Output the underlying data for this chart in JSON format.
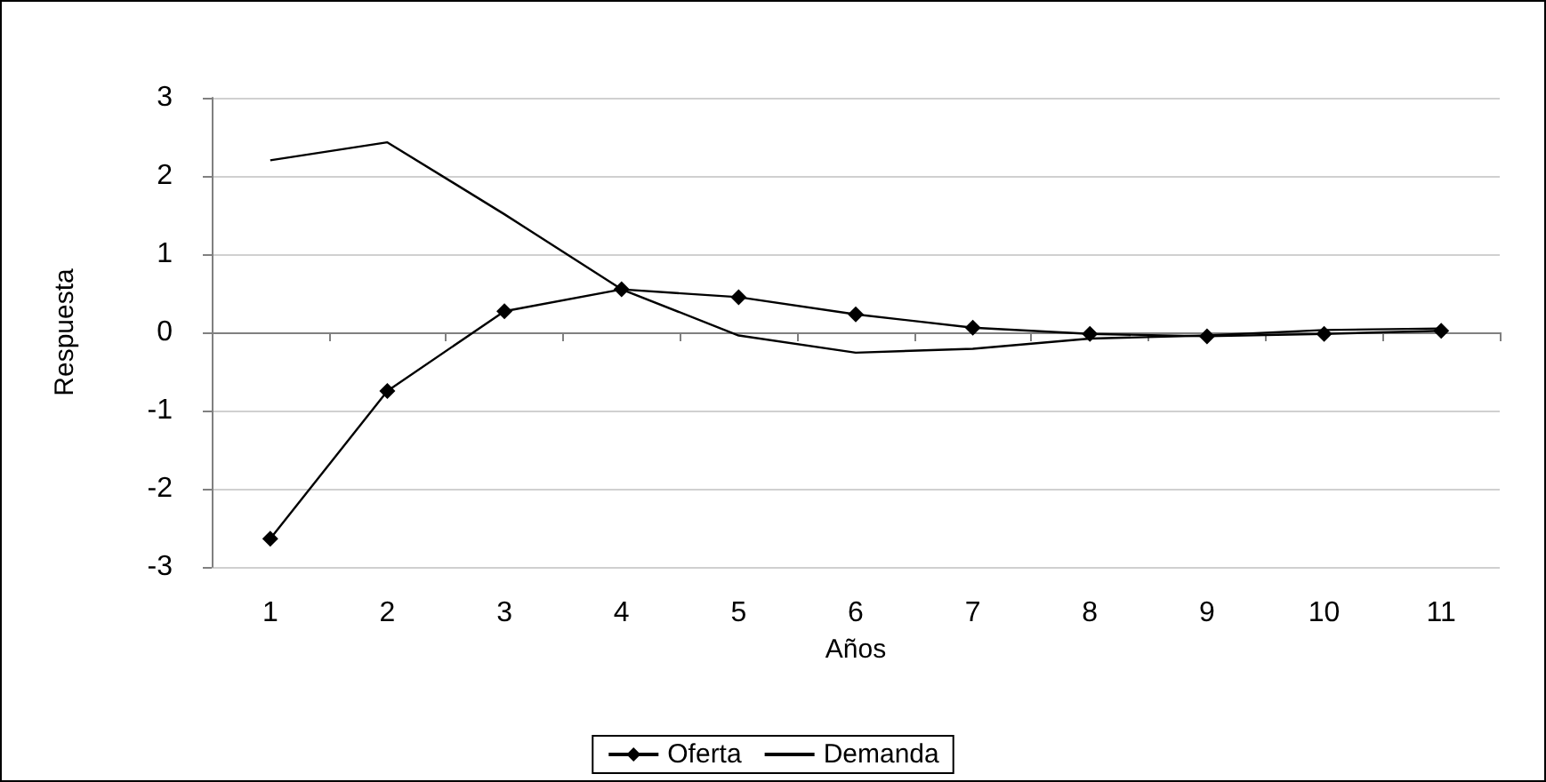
{
  "chart_data": {
    "type": "line",
    "xlabel": "Años",
    "ylabel": "Respuesta",
    "categories": [
      "1",
      "2",
      "3",
      "4",
      "5",
      "6",
      "7",
      "8",
      "9",
      "10",
      "11"
    ],
    "series": [
      {
        "name": "Oferta",
        "color": "#000000",
        "marker": "diamond",
        "values": [
          -2.64,
          -0.75,
          0.27,
          0.55,
          0.45,
          0.23,
          0.06,
          -0.02,
          -0.05,
          -0.02,
          0.02
        ]
      },
      {
        "name": "Demanda",
        "color": "#000000",
        "values": [
          2.2,
          2.43,
          1.51,
          0.55,
          -0.04,
          -0.26,
          -0.21,
          -0.08,
          -0.04,
          0.03,
          0.05
        ]
      }
    ],
    "ylim": [
      -3,
      3
    ],
    "yticks": [
      -3,
      -2,
      -1,
      0,
      1,
      2,
      3
    ],
    "grid": "y",
    "legend": "bottom"
  }
}
